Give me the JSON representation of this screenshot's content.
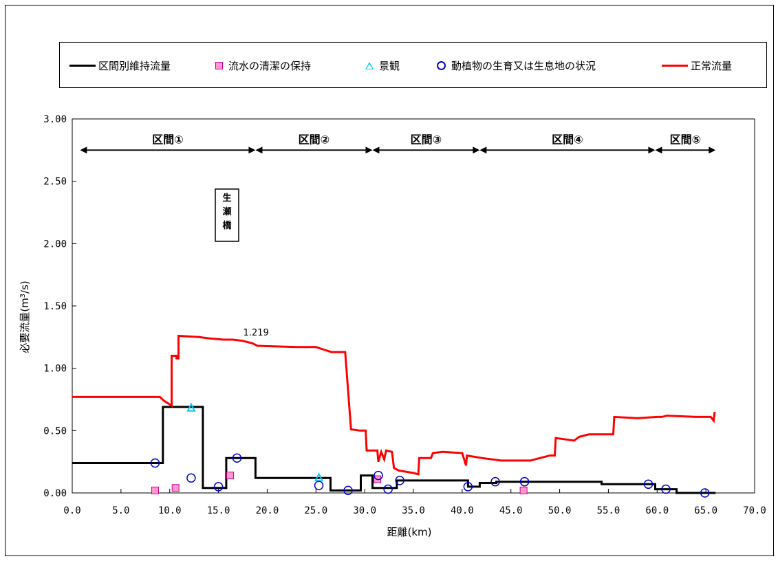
{
  "legend": {
    "items": [
      {
        "label": "区間別維持流量",
        "symbol": "line",
        "color": "#000000"
      },
      {
        "label": "流水の清潔の保持",
        "symbol": "square",
        "color": "#ff99cc"
      },
      {
        "label": "景観",
        "symbol": "triangle",
        "color": "#00ccff"
      },
      {
        "label": "動植物の生育又は生息地の状況",
        "symbol": "circle",
        "color": "#0000cc"
      },
      {
        "label": "正常流量",
        "symbol": "line",
        "color": "#ff0000"
      }
    ]
  },
  "chart_data": {
    "type": "line",
    "xlabel": "距離(km)",
    "ylabel_main": "必要流量(m",
    "ylabel_sup": "3",
    "ylabel_tail": "/s)",
    "xlim": [
      0,
      70
    ],
    "ylim": [
      0,
      3
    ],
    "x_ticks": [
      "0.0",
      "5.0",
      "10.0",
      "15.0",
      "20.0",
      "25.0",
      "30.0",
      "35.0",
      "40.0",
      "45.0",
      "50.0",
      "55.0",
      "60.0",
      "65.0",
      "70.0"
    ],
    "y_ticks": [
      "0.00",
      "0.50",
      "1.00",
      "1.50",
      "2.00",
      "2.50",
      "3.00"
    ],
    "sections": [
      {
        "label": "区間①",
        "start": 0.8,
        "end": 18.8
      },
      {
        "label": "区間②",
        "start": 18.8,
        "end": 30.8
      },
      {
        "label": "区間③",
        "start": 30.8,
        "end": 41.8
      },
      {
        "label": "区間④",
        "start": 41.8,
        "end": 59.8
      },
      {
        "label": "区間⑤",
        "start": 59.8,
        "end": 66.0
      }
    ],
    "bridge_label": "生瀬橋",
    "bridge_chars": [
      "生",
      "瀬",
      "橋"
    ],
    "annotation": {
      "text": "1.219",
      "x": 17.4,
      "y": 1.219
    },
    "series": [
      {
        "name": "区間別維持流量",
        "color": "#000000",
        "step": true,
        "points": [
          [
            0,
            0.24
          ],
          [
            9.3,
            0.24
          ],
          [
            9.3,
            0.69
          ],
          [
            13.4,
            0.69
          ],
          [
            13.4,
            0.04
          ],
          [
            15.8,
            0.04
          ],
          [
            15.8,
            0.28
          ],
          [
            18.8,
            0.28
          ],
          [
            18.8,
            0.12
          ],
          [
            26.5,
            0.12
          ],
          [
            26.5,
            0.02
          ],
          [
            29.6,
            0.02
          ],
          [
            29.6,
            0.14
          ],
          [
            30.8,
            0.14
          ],
          [
            30.8,
            0.04
          ],
          [
            33.3,
            0.04
          ],
          [
            33.3,
            0.1
          ],
          [
            40.6,
            0.1
          ],
          [
            40.6,
            0.05
          ],
          [
            41.8,
            0.05
          ],
          [
            41.8,
            0.08
          ],
          [
            43.5,
            0.08
          ],
          [
            43.5,
            0.09
          ],
          [
            54.3,
            0.09
          ],
          [
            54.3,
            0.07
          ],
          [
            59.8,
            0.07
          ],
          [
            59.8,
            0.03
          ],
          [
            62.0,
            0.03
          ],
          [
            62.0,
            0.0
          ],
          [
            66.0,
            0.0
          ]
        ]
      },
      {
        "name": "正常流量",
        "color": "#ff0000",
        "step": false,
        "points": [
          [
            0,
            0.77
          ],
          [
            9.0,
            0.77
          ],
          [
            9.4,
            0.74
          ],
          [
            9.8,
            0.72
          ],
          [
            10.2,
            0.7
          ],
          [
            10.2,
            1.1
          ],
          [
            10.7,
            1.1
          ],
          [
            10.7,
            1.08
          ],
          [
            10.9,
            1.08
          ],
          [
            10.9,
            1.26
          ],
          [
            13.0,
            1.25
          ],
          [
            14.0,
            1.24
          ],
          [
            15.5,
            1.23
          ],
          [
            16.5,
            1.23
          ],
          [
            17.5,
            1.22
          ],
          [
            18.5,
            1.2
          ],
          [
            19.0,
            1.18
          ],
          [
            23.0,
            1.17
          ],
          [
            25.0,
            1.17
          ],
          [
            25.8,
            1.15
          ],
          [
            26.6,
            1.13
          ],
          [
            28.0,
            1.13
          ],
          [
            28.6,
            0.51
          ],
          [
            29.5,
            0.5
          ],
          [
            30.1,
            0.5
          ],
          [
            30.2,
            0.34
          ],
          [
            31.3,
            0.34
          ],
          [
            31.4,
            0.25
          ],
          [
            31.7,
            0.33
          ],
          [
            32.0,
            0.27
          ],
          [
            32.2,
            0.34
          ],
          [
            32.8,
            0.33
          ],
          [
            33.0,
            0.2
          ],
          [
            33.5,
            0.18
          ],
          [
            35.0,
            0.16
          ],
          [
            35.5,
            0.15
          ],
          [
            35.6,
            0.28
          ],
          [
            36.8,
            0.28
          ],
          [
            37.0,
            0.32
          ],
          [
            38.0,
            0.33
          ],
          [
            40.0,
            0.32
          ],
          [
            40.4,
            0.22
          ],
          [
            40.5,
            0.3
          ],
          [
            42.0,
            0.28
          ],
          [
            44.0,
            0.26
          ],
          [
            47.0,
            0.26
          ],
          [
            48.0,
            0.28
          ],
          [
            49.0,
            0.3
          ],
          [
            49.5,
            0.3
          ],
          [
            49.6,
            0.44
          ],
          [
            51.5,
            0.42
          ],
          [
            52.0,
            0.45
          ],
          [
            53.0,
            0.47
          ],
          [
            55.5,
            0.47
          ],
          [
            55.6,
            0.61
          ],
          [
            58.0,
            0.6
          ],
          [
            60.0,
            0.61
          ],
          [
            60.5,
            0.61
          ],
          [
            61.0,
            0.62
          ],
          [
            64.0,
            0.61
          ],
          [
            65.5,
            0.61
          ],
          [
            65.8,
            0.58
          ],
          [
            65.9,
            0.65
          ]
        ]
      }
    ],
    "markers": {
      "squares": {
        "name": "流水の清潔の保持",
        "color": "#ff99cc",
        "edge": "#cc0099",
        "points": [
          [
            8.5,
            0.02
          ],
          [
            10.6,
            0.04
          ],
          [
            16.2,
            0.14
          ],
          [
            31.3,
            0.11
          ],
          [
            46.3,
            0.02
          ]
        ]
      },
      "triangles": {
        "name": "景観",
        "color": "#00ccff",
        "points": [
          [
            12.2,
            0.68
          ],
          [
            25.3,
            0.12
          ]
        ]
      },
      "circles": {
        "name": "動植物の生育又は生息地の状況",
        "color": "#0000cc",
        "points": [
          [
            8.5,
            0.24
          ],
          [
            12.2,
            0.12
          ],
          [
            15.0,
            0.05
          ],
          [
            16.9,
            0.28
          ],
          [
            25.3,
            0.06
          ],
          [
            28.3,
            0.02
          ],
          [
            31.4,
            0.14
          ],
          [
            32.4,
            0.03
          ],
          [
            33.6,
            0.1
          ],
          [
            40.6,
            0.05
          ],
          [
            43.4,
            0.09
          ],
          [
            46.4,
            0.09
          ],
          [
            59.1,
            0.07
          ],
          [
            60.9,
            0.03
          ],
          [
            64.9,
            0.0
          ]
        ]
      }
    }
  }
}
